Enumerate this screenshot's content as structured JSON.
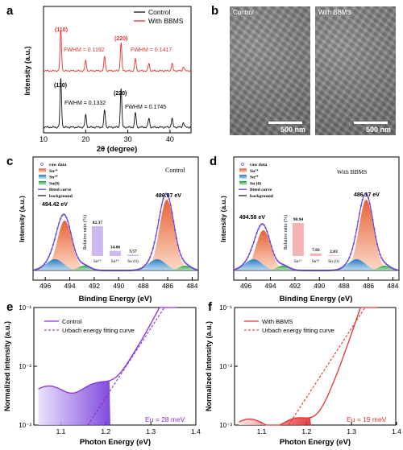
{
  "panels": {
    "a": {
      "letter": "a",
      "legend": [
        "Control",
        "With BBMS"
      ],
      "ylabel": "Intensity (a.u.)",
      "xlabel": "2θ (degree)",
      "xticks": [
        "10",
        "20",
        "30",
        "40"
      ],
      "peak110": "(110)",
      "peak220": "(220)",
      "red_fwhm1": "FWHM = 0.1192",
      "red_fwhm2": "FWHM = 0.1417",
      "black_fwhm1": "FWHM = 0.1332",
      "black_fwhm2": "FWHM = 0.1745"
    },
    "b": {
      "letter": "b",
      "left_label": "Control",
      "right_label": "With BBMS",
      "scale_left": "500 nm",
      "scale_right": "500 nm"
    },
    "c": {
      "letter": "c",
      "title": "Control",
      "legend": [
        "raw data",
        "Sn²⁺",
        "Sn⁴⁺",
        "Sn(0)",
        "fitted curve",
        "background"
      ],
      "peak_left": "494.42 eV",
      "peak_right": "486.07 eV",
      "ratio_label": "Relative ratio (%)",
      "bars": [
        {
          "name": "Sn²⁺",
          "value": 82.37
        },
        {
          "name": "Sn⁴⁺",
          "value": 14.06
        },
        {
          "name": "Sn (0)",
          "value": 3.57
        }
      ],
      "xlabel": "Binding Energy (eV)",
      "ylabel": "Intensity (a.u.)",
      "xticks": [
        "496",
        "494",
        "492",
        "490",
        "488",
        "486",
        "484"
      ]
    },
    "d": {
      "letter": "d",
      "title": "With BBMS",
      "legend": [
        "raw data",
        "Sn²⁺",
        "Sn⁴⁺",
        "Sn (0)",
        "fitted curve",
        "background"
      ],
      "peak_left": "494.58 eV",
      "peak_right": "486.17 eV",
      "ratio_label": "Relative ratio (%)",
      "bars": [
        {
          "name": "Sn²⁺",
          "value": 90.94
        },
        {
          "name": "Sn⁴⁺",
          "value": 7.03
        },
        {
          "name": "Sn (0)",
          "value": 2.03
        }
      ],
      "xlabel": "Binding Energy (eV)",
      "ylabel": "Intensity (a.u.)",
      "xticks": [
        "496",
        "494",
        "492",
        "490",
        "488",
        "486",
        "484"
      ]
    },
    "e": {
      "letter": "e",
      "legend": [
        "Control",
        "Urbach energy fitting curve"
      ],
      "eu": "Eu = 28 meV",
      "xlabel": "Photon Energy (eV)",
      "ylabel": "Normalized Intensity (a.u.)",
      "xticks": [
        "1.1",
        "1.2",
        "1.3",
        "1.4"
      ],
      "yticks": [
        "10⁻¹",
        "10⁻²",
        "10⁻³"
      ]
    },
    "f": {
      "letter": "f",
      "legend": [
        "With BBMS",
        "Urbach energy fitting curve"
      ],
      "eu": "Eu = 19 meV",
      "xlabel": "Photon Energy (eV)",
      "ylabel": "Normalized Intensity (a.u.)",
      "xticks": [
        "1.1",
        "1.2",
        "1.3",
        "1.4"
      ],
      "yticks": [
        "10⁻¹",
        "10⁻²",
        "10⁻³"
      ]
    }
  },
  "colors": {
    "black": "#111111",
    "red": "#e8312f",
    "purple": "#8a2be2",
    "orange": "#f28c5a",
    "blue": "#3a9ad9",
    "green": "#3ab54a",
    "fitted": "#6a3fd8",
    "bar_purple": "#cdb8f2",
    "bar_pink": "#f6b3b3"
  },
  "chart_data": [
    {
      "type": "line",
      "panel": "a",
      "title": "",
      "xlabel": "2θ (degree)",
      "ylabel": "Intensity (a.u.)",
      "xlim": [
        10,
        45
      ],
      "series": [
        {
          "name": "Control",
          "peaks_x": [
            14.1,
            20.0,
            24.5,
            28.4,
            31.8,
            35.0,
            40.5,
            43.2
          ],
          "relative_heights": [
            1.0,
            0.25,
            0.35,
            0.8,
            0.3,
            0.18,
            0.18,
            0.1
          ]
        },
        {
          "name": "With BBMS",
          "peaks_x": [
            14.1,
            20.0,
            24.5,
            28.4,
            31.8,
            35.0,
            40.5,
            43.2
          ],
          "relative_heights": [
            1.0,
            0.25,
            0.35,
            0.7,
            0.3,
            0.18,
            0.18,
            0.1
          ]
        }
      ]
    },
    {
      "type": "line",
      "panel": "c",
      "title": "Control",
      "xlabel": "Binding Energy (eV)",
      "ylabel": "Intensity (a.u.)",
      "xlim": [
        497,
        483.5
      ],
      "peaks": [
        494.42,
        486.07
      ],
      "relative_ratio": {
        "Sn²⁺": 82.37,
        "Sn⁴⁺": 14.06,
        "Sn (0)": 3.57
      }
    },
    {
      "type": "line",
      "panel": "d",
      "title": "With BBMS",
      "xlabel": "Binding Energy (eV)",
      "ylabel": "Intensity (a.u.)",
      "xlim": [
        497,
        483.5
      ],
      "peaks": [
        494.58,
        486.17
      ],
      "relative_ratio": {
        "Sn²⁺": 90.94,
        "Sn⁴⁺": 7.03,
        "Sn (0)": 2.03
      }
    },
    {
      "type": "line",
      "panel": "e",
      "xlabel": "Photon Energy (eV)",
      "ylabel": "Normalized Intensity (a.u.)",
      "xlim": [
        1.04,
        1.4
      ],
      "ylim": [
        0.001,
        0.1
      ],
      "yscale": "log",
      "urbach_energy_meV": 28
    },
    {
      "type": "line",
      "panel": "f",
      "xlabel": "Photon Energy (eV)",
      "ylabel": "Normalized Intensity (a.u.)",
      "xlim": [
        1.04,
        1.4
      ],
      "ylim": [
        0.001,
        0.1
      ],
      "yscale": "log",
      "urbach_energy_meV": 19
    }
  ]
}
